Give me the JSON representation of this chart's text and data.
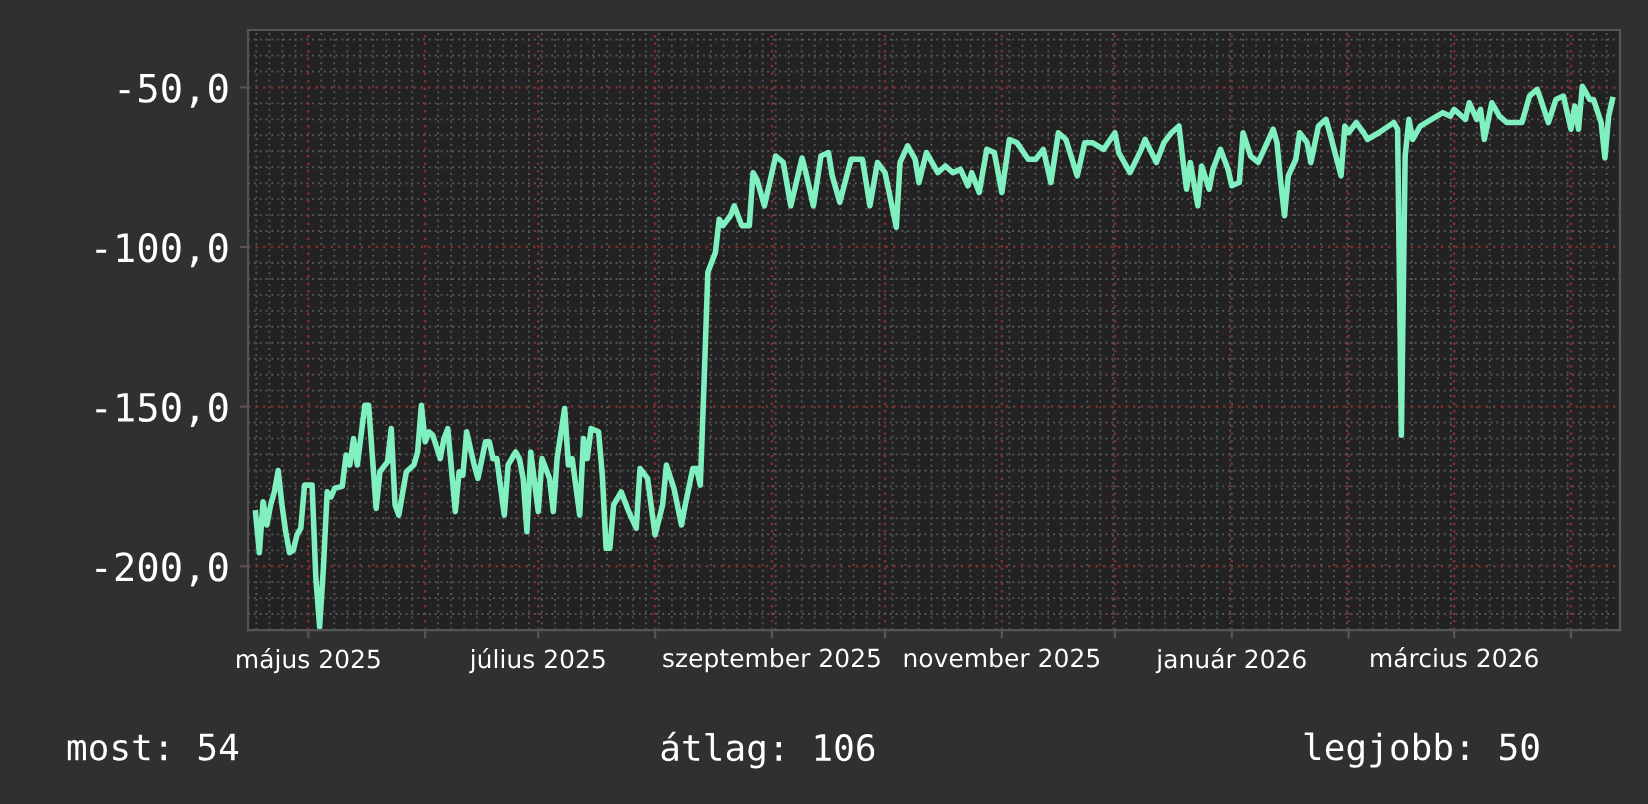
{
  "chart_data": {
    "type": "line",
    "x": [
      "2025-04-17",
      "2025-04-18",
      "2025-04-19",
      "2025-04-20",
      "2025-04-21",
      "2025-04-22",
      "2025-04-23",
      "2025-04-24",
      "2025-04-25",
      "2025-04-26",
      "2025-04-27",
      "2025-04-28",
      "2025-04-29",
      "2025-04-30",
      "2025-05-02",
      "2025-05-03",
      "2025-05-04",
      "2025-05-05",
      "2025-05-06",
      "2025-05-07",
      "2025-05-08",
      "2025-05-10",
      "2025-05-11",
      "2025-05-12",
      "2025-05-13",
      "2025-05-14",
      "2025-05-16",
      "2025-05-17",
      "2025-05-19",
      "2025-05-20",
      "2025-05-22",
      "2025-05-23",
      "2025-05-24",
      "2025-05-25",
      "2025-05-27",
      "2025-05-29",
      "2025-05-30",
      "2025-05-31",
      "2025-06-01",
      "2025-06-02",
      "2025-06-03",
      "2025-06-05",
      "2025-06-06",
      "2025-06-07",
      "2025-06-09",
      "2025-06-10",
      "2025-06-11",
      "2025-06-12",
      "2025-06-14",
      "2025-06-15",
      "2025-06-17",
      "2025-06-18",
      "2025-06-19",
      "2025-06-20",
      "2025-06-22",
      "2025-06-23",
      "2025-06-25",
      "2025-06-26",
      "2025-06-27",
      "2025-06-28",
      "2025-06-29",
      "2025-07-01",
      "2025-07-02",
      "2025-07-04",
      "2025-07-05",
      "2025-07-06",
      "2025-07-08",
      "2025-07-09",
      "2025-07-10",
      "2025-07-12",
      "2025-07-13",
      "2025-07-14",
      "2025-07-15",
      "2025-07-17",
      "2025-07-18",
      "2025-07-19",
      "2025-07-20",
      "2025-07-21",
      "2025-07-23",
      "2025-07-25",
      "2025-07-27",
      "2025-07-28",
      "2025-07-30",
      "2025-08-01",
      "2025-08-03",
      "2025-08-04",
      "2025-08-06",
      "2025-08-08",
      "2025-08-09",
      "2025-08-11",
      "2025-08-12",
      "2025-08-13",
      "2025-08-14",
      "2025-08-15",
      "2025-08-17",
      "2025-08-18",
      "2025-08-19",
      "2025-08-21",
      "2025-08-22",
      "2025-08-24",
      "2025-08-26",
      "2025-08-27",
      "2025-08-28",
      "2025-08-30",
      "2025-09-02",
      "2025-09-04",
      "2025-09-06",
      "2025-09-09",
      "2025-09-10",
      "2025-09-12",
      "2025-09-14",
      "2025-09-16",
      "2025-09-17",
      "2025-09-19",
      "2025-09-22",
      "2025-09-25",
      "2025-09-27",
      "2025-09-29",
      "2025-10-01",
      "2025-10-04",
      "2025-10-05",
      "2025-10-07",
      "2025-10-09",
      "2025-10-10",
      "2025-10-12",
      "2025-10-15",
      "2025-10-17",
      "2025-10-19",
      "2025-10-21",
      "2025-10-23",
      "2025-10-24",
      "2025-10-26",
      "2025-10-28",
      "2025-10-30",
      "2025-11-01",
      "2025-11-03",
      "2025-11-05",
      "2025-11-08",
      "2025-11-10",
      "2025-11-12",
      "2025-11-14",
      "2025-11-16",
      "2025-11-18",
      "2025-11-21",
      "2025-11-23",
      "2025-11-25",
      "2025-11-28",
      "2025-12-01",
      "2025-12-02",
      "2025-12-05",
      "2025-12-08",
      "2025-12-09",
      "2025-12-12",
      "2025-12-14",
      "2025-12-16",
      "2025-12-18",
      "2025-12-19",
      "2025-12-20",
      "2025-12-21",
      "2025-12-23",
      "2025-12-24",
      "2025-12-26",
      "2025-12-27",
      "2025-12-29",
      "2025-12-31",
      "2026-01-01",
      "2026-01-03",
      "2026-01-04",
      "2026-01-06",
      "2026-01-08",
      "2026-01-10",
      "2026-01-12",
      "2026-01-13",
      "2026-01-14",
      "2026-01-15",
      "2026-01-16",
      "2026-01-18",
      "2026-01-19",
      "2026-01-21",
      "2026-01-22",
      "2026-01-24",
      "2026-01-26",
      "2026-01-27",
      "2026-01-30",
      "2026-01-31",
      "2026-02-01",
      "2026-02-03",
      "2026-02-05",
      "2026-02-06",
      "2026-02-09",
      "2026-02-13",
      "2026-02-14",
      "2026-02-15",
      "2026-02-16",
      "2026-02-17",
      "2026-02-18",
      "2026-02-20",
      "2026-02-23",
      "2026-02-26",
      "2026-02-28",
      "2026-03-01",
      "2026-03-04",
      "2026-03-05",
      "2026-03-07",
      "2026-03-08",
      "2026-03-09",
      "2026-03-11",
      "2026-03-13",
      "2026-03-15",
      "2026-03-16",
      "2026-03-19",
      "2026-03-21",
      "2026-03-23",
      "2026-03-24",
      "2026-03-26",
      "2026-03-28",
      "2026-03-30",
      "2026-04-01",
      "2026-04-02",
      "2026-04-03",
      "2026-04-04",
      "2026-04-06",
      "2026-04-07",
      "2026-04-09",
      "2026-04-10",
      "2026-04-11",
      "2026-04-12"
    ],
    "series": [
      {
        "color": "#80f0c0",
        "values": [
          -183.3,
          -195.8,
          -179.8,
          -187.1,
          -180.8,
          -176.7,
          -170.0,
          -180.8,
          -189.2,
          -195.8,
          -195.0,
          -190.2,
          -188.1,
          -174.6,
          -174.6,
          -203.8,
          -219.0,
          -200.6,
          -176.7,
          -178.3,
          -175.6,
          -175.0,
          -165.2,
          -168.3,
          -160.0,
          -168.3,
          -149.6,
          -149.6,
          -181.9,
          -170.4,
          -167.3,
          -156.9,
          -180.8,
          -184.0,
          -170.4,
          -168.3,
          -164.2,
          -149.6,
          -161.0,
          -157.9,
          -158.9,
          -166.3,
          -160.0,
          -156.9,
          -182.9,
          -170.4,
          -171.5,
          -157.9,
          -168.3,
          -172.5,
          -161.0,
          -161.0,
          -166.3,
          -166.3,
          -184.0,
          -168.3,
          -164.2,
          -166.3,
          -172.5,
          -189.2,
          -164.2,
          -182.9,
          -166.3,
          -172.5,
          -182.9,
          -166.3,
          -150.6,
          -168.3,
          -166.3,
          -184.0,
          -160.0,
          -166.3,
          -156.9,
          -157.9,
          -171.5,
          -194.4,
          -194.4,
          -180.8,
          -176.7,
          -182.9,
          -188.1,
          -169.4,
          -172.5,
          -190.2,
          -180.8,
          -168.3,
          -175.6,
          -187.1,
          -180.8,
          -169.4,
          -169.4,
          -174.6,
          -142.3,
          -107.9,
          -101.7,
          -91.3,
          -93.3,
          -90.2,
          -87.1,
          -93.3,
          -93.3,
          -76.7,
          -78.8,
          -87.1,
          -71.5,
          -73.5,
          -87.1,
          -72.1,
          -76.7,
          -87.1,
          -71.5,
          -70.4,
          -77.7,
          -86.0,
          -72.5,
          -72.5,
          -87.1,
          -73.5,
          -76.7,
          -93.8,
          -73.5,
          -68.3,
          -72.5,
          -79.8,
          -70.4,
          -76.7,
          -74.6,
          -76.7,
          -75.6,
          -80.8,
          -76.7,
          -82.9,
          -69.4,
          -70.4,
          -82.9,
          -66.3,
          -67.3,
          -72.5,
          -72.5,
          -69.4,
          -79.8,
          -64.2,
          -66.3,
          -77.7,
          -67.3,
          -67.3,
          -69.4,
          -64.2,
          -70.4,
          -76.7,
          -69.4,
          -66.3,
          -73.5,
          -67.3,
          -64.2,
          -62.1,
          -72.5,
          -81.9,
          -73.5,
          -87.1,
          -74.6,
          -81.9,
          -75.6,
          -69.4,
          -75.6,
          -80.8,
          -79.8,
          -64.2,
          -71.5,
          -73.5,
          -68.3,
          -63.1,
          -67.3,
          -79.8,
          -90.2,
          -77.7,
          -72.5,
          -64.2,
          -67.3,
          -73.5,
          -62.1,
          -60.0,
          -64.2,
          -77.7,
          -62.1,
          -64.2,
          -61.0,
          -64.2,
          -66.3,
          -64.2,
          -61.0,
          -63.1,
          -159.0,
          -71.5,
          -60.0,
          -66.3,
          -62.1,
          -60.0,
          -57.9,
          -59.0,
          -56.9,
          -60.0,
          -54.8,
          -60.0,
          -56.9,
          -66.3,
          -54.8,
          -59.0,
          -61.0,
          -61.0,
          -61.0,
          -52.7,
          -50.6,
          -53.8,
          -61.0,
          -53.8,
          -52.7,
          -63.1,
          -55.8,
          -63.1,
          -49.6,
          -53.8,
          -53.8,
          -61.0,
          -72.1,
          -59.0,
          -53.8
        ]
      }
    ],
    "xlim": [
      "2025-04-15",
      "2026-04-14"
    ],
    "xticks": [
      {
        "value": "2025-05-01",
        "label": "május 2025"
      },
      {
        "value": "2025-06-01",
        "label": null
      },
      {
        "value": "2025-07-01",
        "label": "július 2025"
      },
      {
        "value": "2025-08-01",
        "label": null
      },
      {
        "value": "2025-09-01",
        "label": "szeptember 2025"
      },
      {
        "value": "2025-10-01",
        "label": null
      },
      {
        "value": "2025-11-01",
        "label": "november 2025"
      },
      {
        "value": "2025-12-01",
        "label": null
      },
      {
        "value": "2026-01-01",
        "label": "január 2026"
      },
      {
        "value": "2026-02-01",
        "label": null
      },
      {
        "value": "2026-03-01",
        "label": "március 2026"
      },
      {
        "value": "2026-04-01",
        "label": null
      }
    ],
    "ylim": [
      -220,
      -32
    ],
    "yticks": [
      {
        "value": -200,
        "label": "-200,0"
      },
      {
        "value": -150,
        "label": "-150,0"
      },
      {
        "value": -100,
        "label": "-100,0"
      },
      {
        "value": -50,
        "label": "-50,0"
      }
    ],
    "grid": true,
    "legend": false,
    "marker": "none",
    "line_style": "solid",
    "annotations": [
      "most: 54",
      "átlag: 106",
      "legjobb: 50"
    ]
  }
}
